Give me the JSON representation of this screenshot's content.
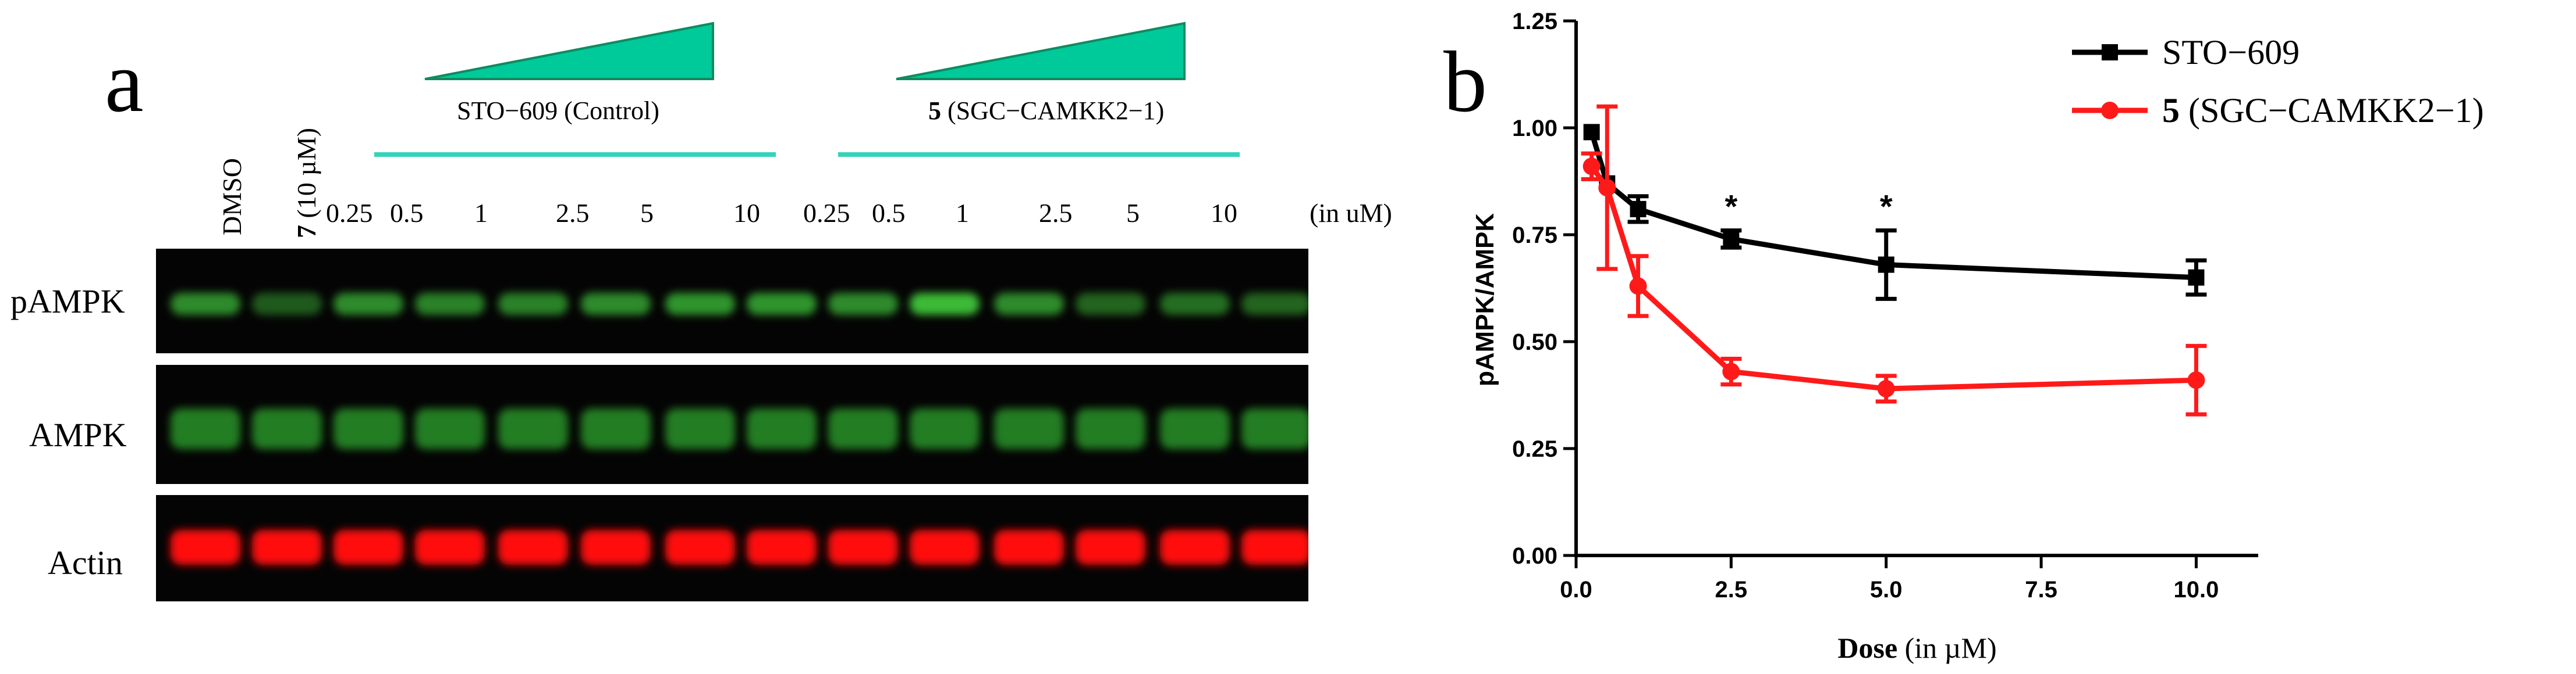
{
  "colors": {
    "sto609": "#000000",
    "cmpd5": "#ff1a1a",
    "teal": "#35d3b8",
    "wedge": "#00c99a"
  },
  "panel_a": {
    "letter": "a",
    "controls": [
      "DMSO",
      "7 (10 µM)"
    ],
    "control_bold": "7",
    "control_rest": " (10 µM)",
    "groups": [
      {
        "label_bold": "",
        "label_rest": "STO−609 (Control)"
      },
      {
        "label_bold": "5",
        "label_rest": " (SGC−CAMKK2−1)"
      }
    ],
    "doses": [
      "0.25",
      "0.5",
      "1",
      "2.5",
      "5",
      "10",
      "0.25",
      "0.5",
      "1",
      "2.5",
      "5",
      "10"
    ],
    "unit": "(in uM)",
    "rows": [
      "pAMPK",
      "AMPK",
      "Actin"
    ]
  },
  "panel_b": {
    "letter": "b"
  },
  "chart_data": {
    "type": "line",
    "xlabel_bold": "Dose",
    "xlabel_rest": " (in µM)",
    "ylabel": "pAMPK/AMPK",
    "xlim": [
      0,
      11
    ],
    "ylim": [
      0,
      1.25
    ],
    "xticks": [
      "0.0",
      "2.5",
      "5.0",
      "7.5",
      "10.0"
    ],
    "yticks": [
      "0.00",
      "0.25",
      "0.50",
      "0.75",
      "1.00",
      "1.25"
    ],
    "legend_position": "top-right",
    "series": [
      {
        "name": "STO−609",
        "name_bold": "",
        "color": "#000000",
        "marker": "square",
        "x": [
          0.25,
          0.5,
          1,
          2.5,
          5,
          10
        ],
        "y": [
          0.99,
          0.87,
          0.81,
          0.74,
          0.68,
          0.65
        ],
        "err": [
          0,
          0,
          0.03,
          0.02,
          0.08,
          0.04
        ]
      },
      {
        "name": " (SGC−CAMKK2−1)",
        "name_bold": "5",
        "color": "#ff1a1a",
        "marker": "circle",
        "x": [
          0.25,
          0.5,
          1,
          2.5,
          5,
          10
        ],
        "y": [
          0.91,
          0.86,
          0.63,
          0.43,
          0.39,
          0.41
        ],
        "err": [
          0.03,
          0.19,
          0.07,
          0.03,
          0.03,
          0.08
        ]
      }
    ],
    "annotations": [
      {
        "x": 2.5,
        "text": "*"
      },
      {
        "x": 5,
        "text": "*"
      }
    ]
  }
}
